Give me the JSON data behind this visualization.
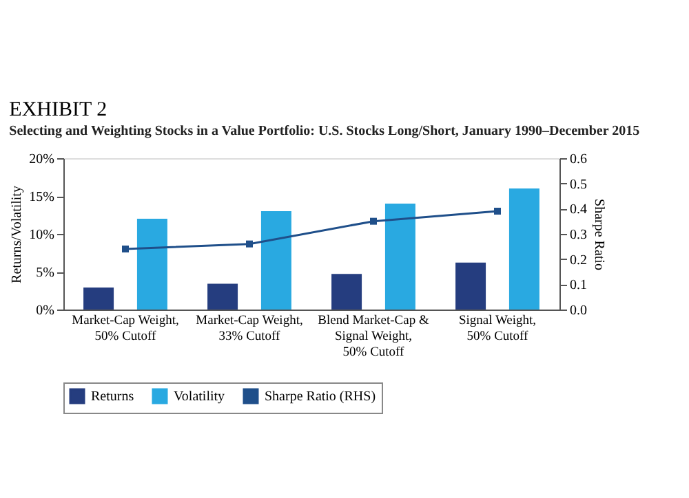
{
  "chart_data": {
    "type": "bar",
    "title": "EXHIBIT 2",
    "subtitle": "Selecting and Weighting Stocks in a Value Portfolio: U.S. Stocks Long/Short, January 1990–December 2015",
    "categories": [
      "Market-Cap Weight, 50% Cutoff",
      "Market-Cap Weight, 33% Cutoff",
      "Blend Market-Cap & Signal Weight, 50% Cutoff",
      "Signal Weight, 50% Cutoff"
    ],
    "ylabel": "Returns/Volatility",
    "y2label": "Sharpe Ratio",
    "ylim": [
      0,
      20
    ],
    "yticks": [
      {
        "value": 0,
        "label": "0%"
      },
      {
        "value": 5,
        "label": "5%"
      },
      {
        "value": 10,
        "label": "10%"
      },
      {
        "value": 15,
        "label": "15%"
      },
      {
        "value": 20,
        "label": "20%"
      }
    ],
    "y2lim": [
      0,
      0.6
    ],
    "y2ticks": [
      {
        "value": 0,
        "label": "0.0"
      },
      {
        "value": 0.1,
        "label": "0.1"
      },
      {
        "value": 0.2,
        "label": "0.2"
      },
      {
        "value": 0.3,
        "label": "0.3"
      },
      {
        "value": 0.4,
        "label": "0.4"
      },
      {
        "value": 0.5,
        "label": "0.5"
      },
      {
        "value": 0.6,
        "label": "0.6"
      }
    ],
    "series": [
      {
        "name": "Returns",
        "color": "#253d7f",
        "values": [
          2.9,
          3.4,
          4.7,
          6.2
        ]
      },
      {
        "name": "Volatility",
        "color": "#29a9e1",
        "values": [
          12,
          13,
          14,
          16
        ]
      },
      {
        "name": "Sharpe Ratio (RHS)",
        "type": "line",
        "axis": "y2",
        "color": "#1f4f8a",
        "values": [
          0.24,
          0.26,
          0.35,
          0.39
        ]
      }
    ],
    "marker": "square",
    "grid": false,
    "legend": "bottom"
  }
}
